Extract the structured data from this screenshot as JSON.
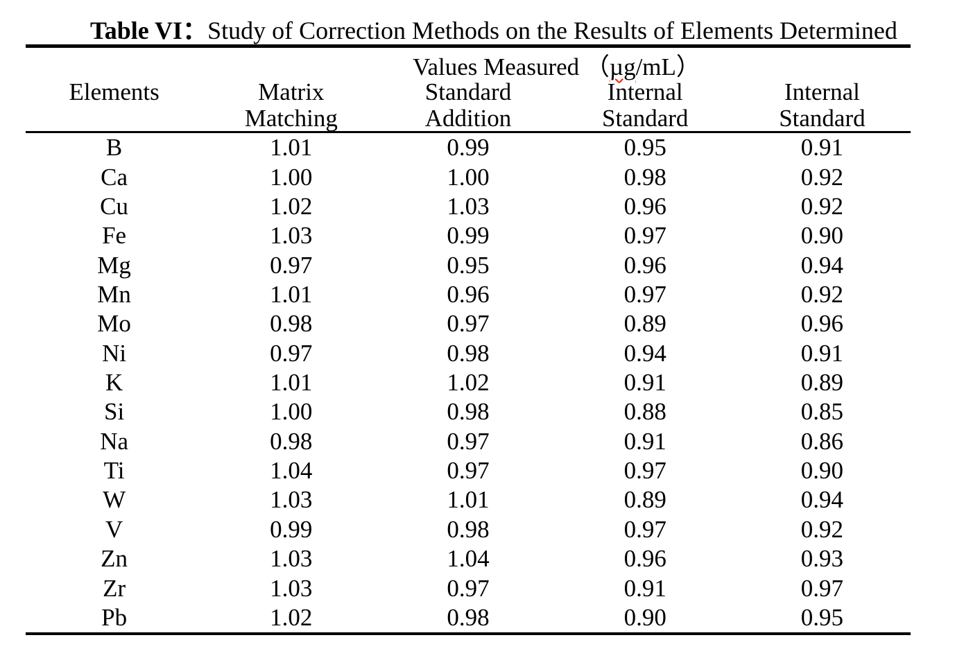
{
  "title": {
    "prefix": "Table VI：",
    "text": "Study of Correction Methods on the Results of Elements Determined"
  },
  "spanning_header": {
    "prefix": "Values Measured （",
    "unit": "µg",
    "suffix": "/mL）",
    "spellcheck_underline_color": "#ff1a00"
  },
  "columns": {
    "line1": [
      "Elements",
      "Matrix",
      "Standard",
      "Internal",
      "Internal"
    ],
    "line2": [
      "",
      "Matching",
      "Addition",
      "Standard",
      "Standard"
    ]
  },
  "table": {
    "rows": [
      [
        "B",
        "1.01",
        "0.99",
        "0.95",
        "0.91"
      ],
      [
        "Ca",
        "1.00",
        "1.00",
        "0.98",
        "0.92"
      ],
      [
        "Cu",
        "1.02",
        "1.03",
        "0.96",
        "0.92"
      ],
      [
        "Fe",
        "1.03",
        "0.99",
        "0.97",
        "0.90"
      ],
      [
        "Mg",
        "0.97",
        "0.95",
        "0.96",
        "0.94"
      ],
      [
        "Mn",
        "1.01",
        "0.96",
        "0.97",
        "0.92"
      ],
      [
        "Mo",
        "0.98",
        "0.97",
        "0.89",
        "0.96"
      ],
      [
        "Ni",
        "0.97",
        "0.98",
        "0.94",
        "0.91"
      ],
      [
        "K",
        "1.01",
        "1.02",
        "0.91",
        "0.89"
      ],
      [
        "Si",
        "1.00",
        "0.98",
        "0.88",
        "0.85"
      ],
      [
        "Na",
        "0.98",
        "0.97",
        "0.91",
        "0.86"
      ],
      [
        "Ti",
        "1.04",
        "0.97",
        "0.97",
        "0.90"
      ],
      [
        "W",
        "1.03",
        "1.01",
        "0.89",
        "0.94"
      ],
      [
        "V",
        "0.99",
        "0.98",
        "0.97",
        "0.92"
      ],
      [
        "Zn",
        "1.03",
        "1.04",
        "0.96",
        "0.93"
      ],
      [
        "Zr",
        "1.03",
        "0.97",
        "0.91",
        "0.97"
      ],
      [
        "Pb",
        "1.02",
        "0.98",
        "0.90",
        "0.95"
      ]
    ]
  },
  "colors": {
    "text": "#000000",
    "rule": "#000000",
    "background": "#ffffff"
  }
}
